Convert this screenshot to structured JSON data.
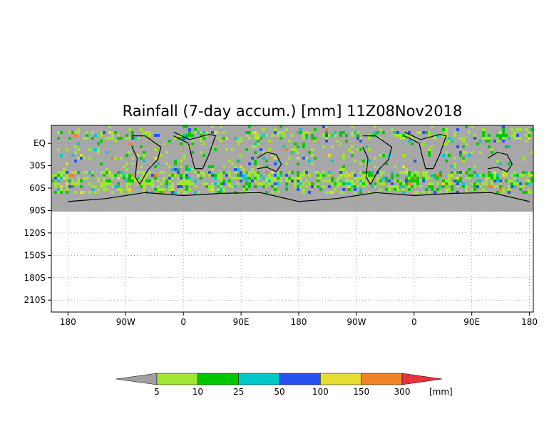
{
  "chart_data": {
    "type": "heatmap",
    "title": "Rainfall (7-day accum.) [mm] 11Z08Nov2018",
    "variable": "7-day accumulated rainfall",
    "units": "mm",
    "valid_time": "11Z08Nov2018",
    "projection": "cylindrical equidistant, longitude repeated (two global cycles)",
    "x_axis": {
      "ticks": [
        {
          "lon": -180,
          "label": "180"
        },
        {
          "lon": -90,
          "label": "90W"
        },
        {
          "lon": 0,
          "label": "0"
        },
        {
          "lon": 90,
          "label": "90E"
        },
        {
          "lon": 180,
          "label": "180"
        },
        {
          "lon": 270,
          "label": "90W"
        },
        {
          "lon": 360,
          "label": "0"
        },
        {
          "lon": 450,
          "label": "90E"
        },
        {
          "lon": 540,
          "label": "180"
        }
      ],
      "xlim": [
        -206,
        546
      ]
    },
    "y_axis": {
      "ticks": [
        {
          "lat": 0,
          "label": "EQ"
        },
        {
          "lat": -30,
          "label": "30S"
        },
        {
          "lat": -60,
          "label": "60S"
        },
        {
          "lat": -90,
          "label": "90S"
        },
        {
          "lat": -120,
          "label": "120S"
        },
        {
          "lat": -150,
          "label": "150S"
        },
        {
          "lat": -180,
          "label": "180S"
        },
        {
          "lat": -210,
          "label": "210S"
        }
      ],
      "ylim": [
        -226,
        24
      ]
    },
    "data_lat_range": [
      -90,
      24
    ],
    "grid": "dotted",
    "no_rain_color": "#a8a8a8",
    "colorbar": {
      "placement": "bottom",
      "units_label": "[mm]",
      "below_color": "#a0a0a0",
      "above_color": "#e8323c",
      "levels": [
        {
          "label": "5",
          "value": 5
        },
        {
          "label": "10",
          "value": 10
        },
        {
          "label": "25",
          "value": 25
        },
        {
          "label": "50",
          "value": 50
        },
        {
          "label": "100",
          "value": 100
        },
        {
          "label": "150",
          "value": 150
        },
        {
          "label": "300",
          "value": 300
        }
      ],
      "colors": [
        "#a0e632",
        "#00c800",
        "#00c8c8",
        "#2850f0",
        "#e6dc32",
        "#f08228"
      ]
    },
    "rain_bands": [
      {
        "lat_min": 5,
        "lat_max": 20,
        "intensity": 1
      },
      {
        "lat_min": -58,
        "lat_max": -35,
        "intensity": 2
      },
      {
        "lat_min": -65,
        "lat_max": -58,
        "intensity": 1
      }
    ]
  }
}
